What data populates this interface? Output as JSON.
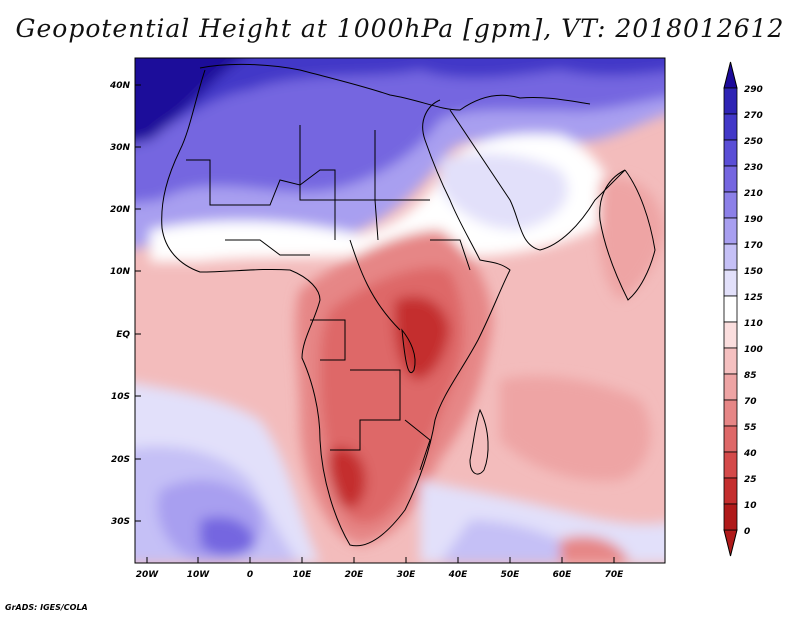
{
  "title": "Geopotential Height at 1000hPa [gpm], VT: 2018012612",
  "credit": "GrADS: IGES/COLA",
  "lat_labels": [
    "40N",
    "30N",
    "20N",
    "10N",
    "EQ",
    "10S",
    "20S",
    "30S"
  ],
  "lon_labels": [
    "20W",
    "10W",
    "0",
    "10E",
    "20E",
    "30E",
    "40E",
    "50E",
    "60E",
    "70E"
  ],
  "colorbar": {
    "labels": [
      "290",
      "270",
      "250",
      "230",
      "210",
      "190",
      "170",
      "150",
      "125",
      "110",
      "100",
      "85",
      "70",
      "55",
      "40",
      "25",
      "10",
      "0"
    ],
    "colors": [
      "#1c0a9a",
      "#2e24b4",
      "#4238c8",
      "#5a4ed6",
      "#7566e0",
      "#8c80e8",
      "#a89ff0",
      "#c5c0f6",
      "#e2e0fa",
      "#ffffff",
      "#fbdede",
      "#f5c0c0",
      "#eea4a4",
      "#e68686",
      "#de6868",
      "#d44a4a",
      "#c42e2e",
      "#b01a1a"
    ]
  },
  "map_data": {
    "field": "Geopotential Height at 1000hPa",
    "units": "gpm",
    "valid_time": "2018012612",
    "lon_range": [
      -23,
      80
    ],
    "lat_range": [
      -37,
      45
    ]
  }
}
